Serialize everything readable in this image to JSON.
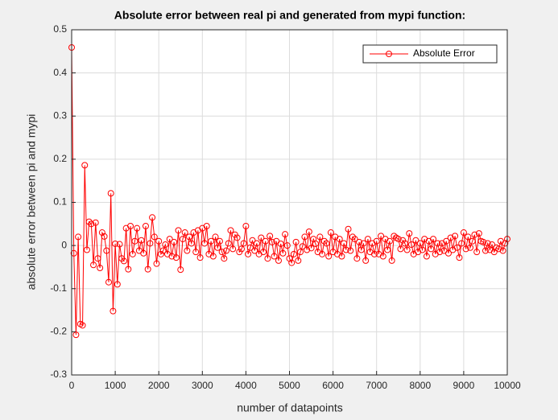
{
  "chart_data": {
    "type": "line",
    "title": "Absolute error between real pi and generated from mypi function:",
    "x_label": "number of datapoints",
    "y_label": "absolute error between pi and mypi",
    "xlim": [
      0,
      10000
    ],
    "ylim": [
      -0.3,
      0.5
    ],
    "xticks": [
      0,
      1000,
      2000,
      3000,
      4000,
      5000,
      6000,
      7000,
      8000,
      9000,
      10000
    ],
    "yticks": [
      0.5,
      0.4,
      0.3,
      0.2,
      0.1,
      0,
      -0.1,
      -0.2,
      -0.3
    ],
    "grid": true,
    "legend_position": "northeast",
    "x": [
      0,
      50,
      100,
      150,
      200,
      250,
      300,
      350,
      400,
      450,
      500,
      550,
      600,
      650,
      700,
      750,
      800,
      850,
      900,
      950,
      1000,
      1050,
      1100,
      1150,
      1200,
      1250,
      1300,
      1350,
      1400,
      1450,
      1500,
      1550,
      1600,
      1650,
      1700,
      1750,
      1800,
      1850,
      1900,
      1950,
      2000,
      2050,
      2100,
      2150,
      2200,
      2250,
      2300,
      2350,
      2400,
      2450,
      2500,
      2550,
      2600,
      2650,
      2700,
      2750,
      2800,
      2850,
      2900,
      2950,
      3000,
      3050,
      3100,
      3150,
      3200,
      3250,
      3300,
      3350,
      3400,
      3450,
      3500,
      3550,
      3600,
      3650,
      3700,
      3750,
      3800,
      3850,
      3900,
      3950,
      4000,
      4050,
      4100,
      4150,
      4200,
      4250,
      4300,
      4350,
      4400,
      4450,
      4500,
      4550,
      4600,
      4650,
      4700,
      4750,
      4800,
      4850,
      4900,
      4950,
      5000,
      5050,
      5100,
      5150,
      5200,
      5250,
      5300,
      5350,
      5400,
      5450,
      5500,
      5550,
      5600,
      5650,
      5700,
      5750,
      5800,
      5850,
      5900,
      5950,
      6000,
      6050,
      6100,
      6150,
      6200,
      6250,
      6300,
      6350,
      6400,
      6450,
      6500,
      6550,
      6600,
      6650,
      6700,
      6750,
      6800,
      6850,
      6900,
      6950,
      7000,
      7050,
      7100,
      7150,
      7200,
      7250,
      7300,
      7350,
      7400,
      7450,
      7500,
      7550,
      7600,
      7650,
      7700,
      7750,
      7800,
      7850,
      7900,
      7950,
      8000,
      8050,
      8100,
      8150,
      8200,
      8250,
      8300,
      8350,
      8400,
      8450,
      8500,
      8550,
      8600,
      8650,
      8700,
      8750,
      8800,
      8850,
      8900,
      8950,
      9000,
      9050,
      9100,
      9150,
      9200,
      9250,
      9300,
      9350,
      9400,
      9450,
      9500,
      9550,
      9600,
      9650,
      9700,
      9750,
      9800,
      9850,
      9900,
      9950,
      10000
    ],
    "series": [
      {
        "name": "Absolute Error",
        "color": "#ff0000",
        "values": [
          0.459,
          -0.018,
          -0.207,
          0.02,
          -0.182,
          -0.185,
          0.186,
          -0.01,
          0.055,
          0.05,
          -0.045,
          0.053,
          -0.03,
          -0.052,
          0.03,
          0.021,
          -0.012,
          -0.085,
          0.121,
          -0.152,
          0.004,
          -0.09,
          0.003,
          -0.03,
          -0.036,
          0.04,
          -0.055,
          0.045,
          -0.02,
          0.01,
          0.04,
          -0.012,
          0.012,
          -0.018,
          0.045,
          -0.055,
          0.005,
          0.065,
          0.02,
          -0.042,
          0.01,
          -0.02,
          -0.012,
          0.002,
          -0.02,
          0.015,
          -0.025,
          0.008,
          -0.028,
          0.035,
          -0.056,
          0.015,
          0.03,
          -0.012,
          0.02,
          0.005,
          0.03,
          -0.015,
          0.035,
          -0.028,
          0.04,
          0.005,
          0.045,
          -0.02,
          0.01,
          -0.025,
          0.02,
          -0.005,
          0.01,
          -0.015,
          -0.03,
          -0.012,
          0.005,
          0.035,
          -0.008,
          0.025,
          0.018,
          -0.015,
          -0.008,
          0.005,
          0.045,
          -0.02,
          -0.005,
          0.012,
          -0.012,
          0.005,
          -0.02,
          0.018,
          -0.015,
          0.01,
          -0.03,
          0.022,
          0.008,
          -0.025,
          0.01,
          -0.035,
          0.004,
          -0.018,
          0.026,
          0,
          -0.03,
          -0.04,
          -0.02,
          0.008,
          -0.035,
          -0.015,
          -0.002,
          0.02,
          -0.01,
          0.032,
          -0.006,
          0.015,
          0.004,
          -0.015,
          0.02,
          -0.02,
          0.01,
          0.005,
          -0.025,
          0.03,
          -0.015,
          0.02,
          -0.02,
          0.015,
          -0.025,
          0.005,
          -0.01,
          0.038,
          -0.012,
          0.02,
          0.015,
          -0.03,
          0.008,
          -0.01,
          0.005,
          -0.035,
          0.015,
          -0.015,
          0.005,
          -0.02,
          0.01,
          -0.02,
          0.022,
          -0.025,
          0.015,
          -0.01,
          0.01,
          -0.035,
          0.022,
          0.018,
          0.015,
          -0.008,
          0.012,
          0.005,
          -0.01,
          0.028,
          0.002,
          -0.02,
          0.012,
          -0.015,
          0.005,
          -0.01,
          0.015,
          -0.025,
          0.01,
          -0.008,
          0.015,
          -0.02,
          0.005,
          -0.015,
          0.005,
          -0.012,
          0.01,
          -0.018,
          0.018,
          -0.01,
          0.022,
          -0.005,
          -0.028,
          0.005,
          0.03,
          -0.008,
          0.02,
          -0.005,
          0.01,
          0.025,
          -0.015,
          0.028,
          0.01,
          0.008,
          -0.012,
          0.005,
          -0.01,
          0.002,
          -0.015,
          -0.005,
          -0.008,
          0.01,
          -0.012,
          0.005,
          0.015
        ]
      }
    ]
  }
}
